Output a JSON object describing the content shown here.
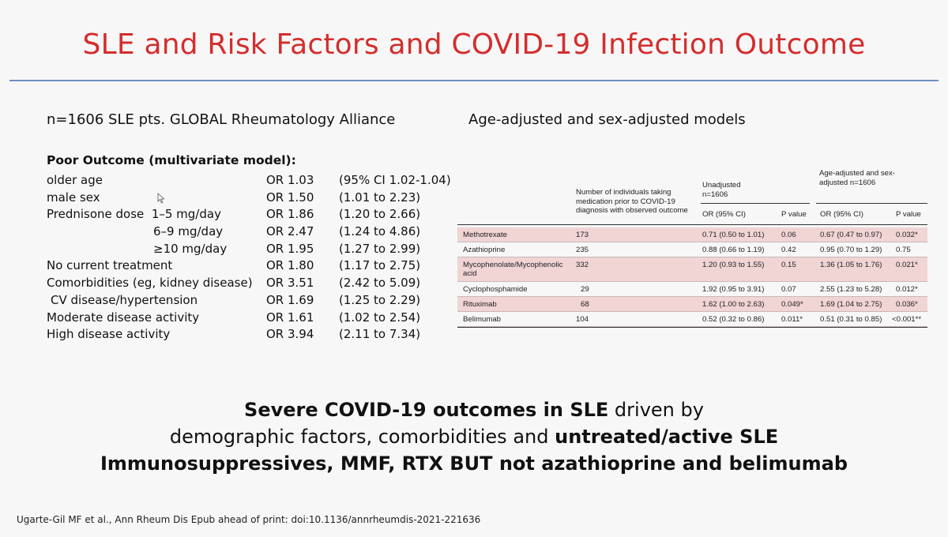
{
  "title": "SLE and Risk Factors and COVID-19 Infection Outcome",
  "left_subtitle": "n=1606 SLE pts. GLOBAL Rheumatology Alliance",
  "right_subtitle": "Age-adjusted and sex-adjusted models",
  "poor_outcome": {
    "heading": "Poor Outcome (multivariate model):",
    "rows": [
      {
        "label": "older age",
        "or": "OR 1.03",
        "ci": "(95% CI 1.02-1.04)"
      },
      {
        "label": "male sex",
        "or": "OR 1.50",
        "ci": "(1.01 to 2.23)"
      },
      {
        "label": "Prednisone dose  1–5 mg/day",
        "or": "OR 1.86",
        "ci": "(1.20 to 2.66)"
      },
      {
        "label": "6–9 mg/day",
        "or": "OR 2.47",
        "ci": "(1.24 to 4.86)"
      },
      {
        "label": "≥10 mg/day",
        "or": "OR 1.95",
        "ci": "(1.27 to 2.99)"
      },
      {
        "label": "No current treatment",
        "or": "OR 1.80",
        "ci": "(1.17 to 2.75)"
      },
      {
        "label": "Comorbidities (eg, kidney disease)",
        "or": "OR 3.51",
        "ci": "(2.42 to 5.09)"
      },
      {
        "label": "CV disease/hypertension",
        "or": "OR 1.69",
        "ci": "(1.25 to 2.29)"
      },
      {
        "label": "Moderate disease activity",
        "or": "OR 1.61",
        "ci": "(1.02 to 2.54)"
      },
      {
        "label": "High disease activity",
        "or": "OR 3.94",
        "ci": "(2.11 to 7.34)"
      }
    ]
  },
  "med_table": {
    "header": {
      "count_col": "Number of individuals taking medication prior to COVID-19 diagnosis with observed outcome",
      "unadjusted": "Unadjusted n=1606",
      "adjusted": "Age-adjusted and sex- adjusted n=1606",
      "or_col": "OR (95% CI)",
      "p_col": "P value"
    },
    "rows": [
      {
        "drug": "Methotrexate",
        "n": "173",
        "or_u": "0.71 (0.50 to 1.01)",
        "p_u": "0.06",
        "or_a": "0.67 (0.47 to 0.97)",
        "p_a": "0.032*"
      },
      {
        "drug": "Azathioprine",
        "n": "235",
        "or_u": "0.88 (0.66 to 1.19)",
        "p_u": "0.42",
        "or_a": "0.95 (0.70 to 1.29)",
        "p_a": "0.75"
      },
      {
        "drug": "Mycophenolate/Mycophenolic acid",
        "n": "332",
        "or_u": "1.20 (0.93 to 1.55)",
        "p_u": "0.15",
        "or_a": "1.36 (1.05 to 1.76)",
        "p_a": "0.021*"
      },
      {
        "drug": "Cyclophosphamide",
        "n": "29",
        "or_u": "1.92 (0.95 to 3.91)",
        "p_u": "0.07",
        "or_a": "2.55 (1.23 to 5.28)",
        "p_a": "0.012*"
      },
      {
        "drug": "Rituximab",
        "n": "68",
        "or_u": "1.62 (1.00 to 2.63)",
        "p_u": "0.049*",
        "or_a": "1.69 (1.04 to 2.75)",
        "p_a": "0.036*"
      },
      {
        "drug": "Belimumab",
        "n": "104",
        "or_u": "0.52 (0.32 to 0.86)",
        "p_u": "0.011*",
        "or_a": "0.51 (0.31 to 0.85)",
        "p_a": "<0.001**"
      }
    ]
  },
  "summary": {
    "line1_bold": "Severe COVID-19 outcomes in SLE",
    "line1_rest": " driven by",
    "line2_plain": "demographic factors, comorbidities and ",
    "line2_bold": "untreated/active SLE",
    "line3_bold": "Immunosuppressives, MMF, RTX BUT not azathioprine and belimumab"
  },
  "citation": "Ugarte-Gil MF et al., Ann Rheum Dis Epub ahead of print: doi:10.1136/annrheumdis-2021-221636"
}
